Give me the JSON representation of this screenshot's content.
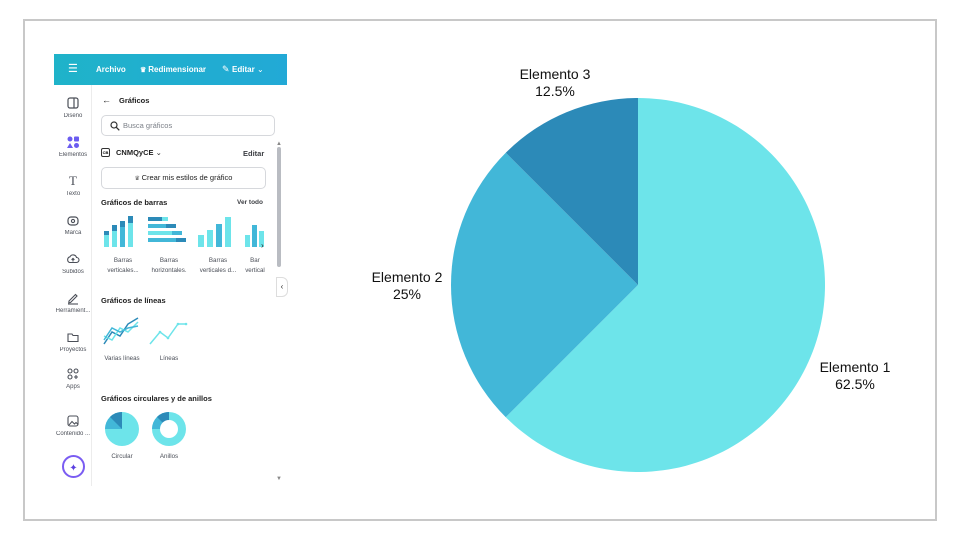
{
  "toolbar": {
    "menu_icon": "hamburger-icon",
    "file_label": "Archivo",
    "resize_label": "Redimensionar",
    "edit_label": "Editar"
  },
  "rail": {
    "items": [
      {
        "label": "Diseño",
        "icon": "layout-icon"
      },
      {
        "label": "Elementos",
        "icon": "shapes-icon"
      },
      {
        "label": "Texto",
        "icon": "text-icon"
      },
      {
        "label": "Marca",
        "icon": "brand-icon"
      },
      {
        "label": "Subidos",
        "icon": "cloud-upload-icon"
      },
      {
        "label": "Herramient...",
        "icon": "pen-icon"
      },
      {
        "label": "Proyectos",
        "icon": "folder-icon"
      },
      {
        "label": "Apps",
        "icon": "apps-icon"
      },
      {
        "label": "Contenido ...",
        "icon": "image-icon"
      }
    ],
    "magic_icon": "sparkle-icon"
  },
  "panel": {
    "title": "Gráficos",
    "search_placeholder": "Busca gráficos",
    "brand_name": "CNMQyCE",
    "brand_edit": "Editar",
    "create_button": "Crear mis estilos de gráfico",
    "bars_section": "Gráficos de barras",
    "see_all": "Ver todo",
    "bar_items": [
      {
        "line1": "Barras",
        "line2": "verticales..."
      },
      {
        "line1": "Barras",
        "line2": "horizontales."
      },
      {
        "line1": "Barras",
        "line2": "verticales d..."
      },
      {
        "line1": "Bar",
        "line2": "vertical"
      }
    ],
    "lines_section": "Gráficos de líneas",
    "line_items": [
      "Varias líneas",
      "Líneas"
    ],
    "pie_section": "Gráficos circulares y de anillos",
    "pie_items": [
      "Circular",
      "Anillos"
    ]
  },
  "colors": {
    "topbar": "#1fb3c9",
    "slice1": "#6de4ea",
    "slice2": "#42b7d8",
    "slice3": "#2c8ab8"
  },
  "chart_data": {
    "type": "pie",
    "title": "",
    "start_angle": "12 o'clock, clockwise",
    "slices": [
      {
        "label": "Elemento 1",
        "value": 62.5,
        "display": "62.5%",
        "color": "#6de4ea"
      },
      {
        "label": "Elemento 2",
        "value": 25,
        "display": "25%",
        "color": "#42b7d8"
      },
      {
        "label": "Elemento 3",
        "value": 12.5,
        "display": "12.5%",
        "color": "#2c8ab8"
      }
    ],
    "legend": "none",
    "data_labels": "outside"
  }
}
